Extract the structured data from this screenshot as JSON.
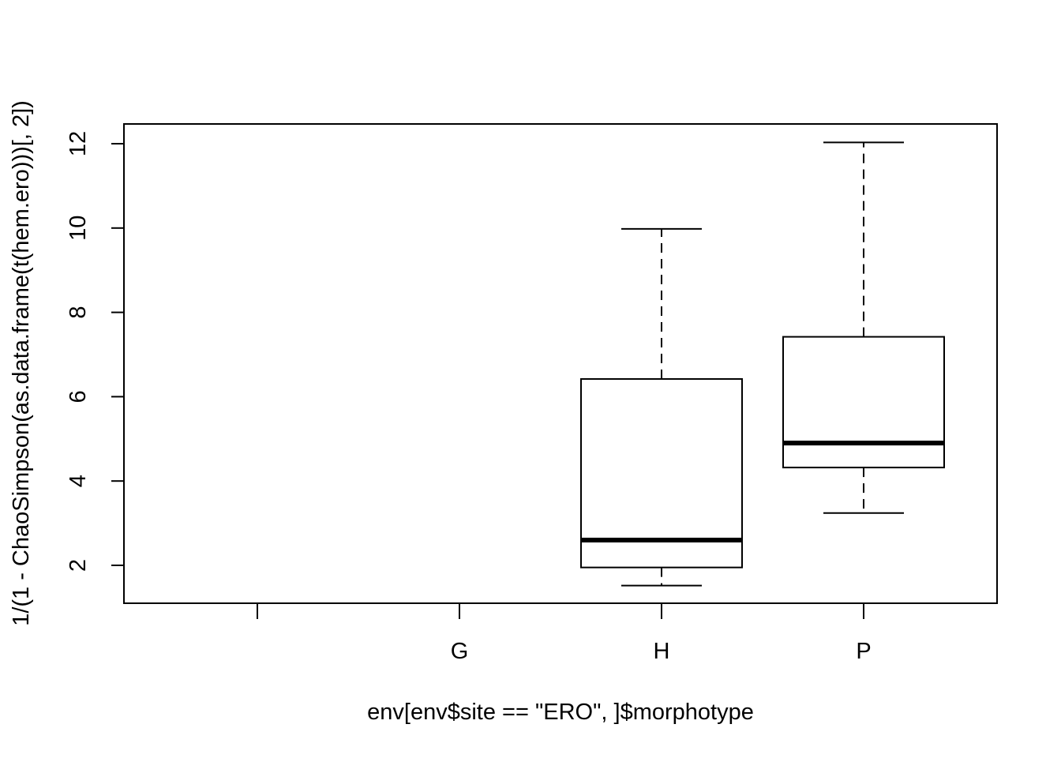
{
  "chart_data": {
    "type": "box",
    "xlabel": "env[env$site == \"ERO\", ]$morphotype",
    "ylabel": "1/(1 - ChaoSimpson(as.data.frame(t(hem.ero)))[, 2])",
    "ylim": [
      1.1,
      12.5
    ],
    "yticks": [
      2,
      4,
      6,
      8,
      10,
      12
    ],
    "categories": [
      "",
      "G",
      "H",
      "P"
    ],
    "boxes": [
      null,
      null,
      {
        "whisker_low": 1.52,
        "q1": 1.95,
        "median": 2.6,
        "q3": 6.42,
        "whisker_high": 9.98
      },
      {
        "whisker_low": 3.24,
        "q1": 4.32,
        "median": 4.9,
        "q3": 7.42,
        "whisker_high": 12.03
      }
    ],
    "colors": {
      "stroke": "#000000",
      "fill": "#ffffff"
    }
  }
}
